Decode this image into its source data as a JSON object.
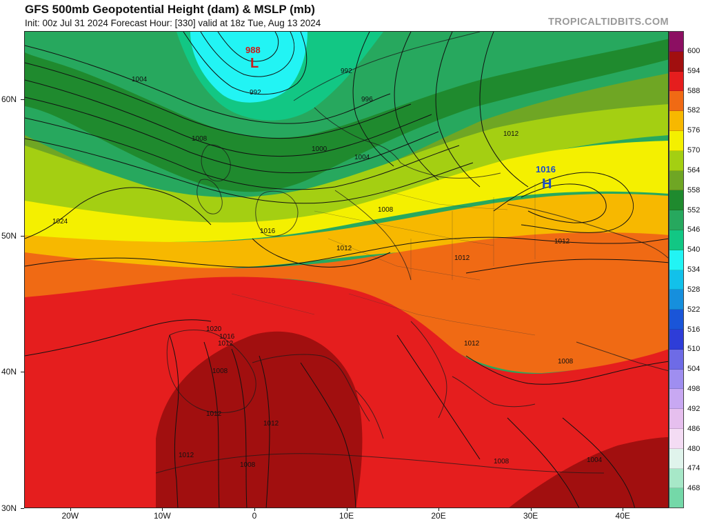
{
  "header": {
    "title": "GFS 500mb Geopotential Height (dam) & MSLP (mb)",
    "subtitle": "Init: 00z Jul 31 2024   Forecast Hour: [330]   valid at 18z Tue, Aug 13 2024",
    "brand": "TROPICALTIDBITS.COM"
  },
  "map": {
    "projection": "equirectangular",
    "lon_range": [
      -25,
      45
    ],
    "lat_range": [
      30,
      65
    ],
    "x_tick_labels": [
      "20W",
      "10W",
      "0",
      "10E",
      "20E",
      "30E",
      "40E"
    ],
    "y_tick_labels": [
      "60N",
      "50N",
      "40N",
      "30N"
    ],
    "pressure_centers": [
      {
        "type": "L",
        "value": "988"
      },
      {
        "type": "H",
        "value": "1016"
      }
    ],
    "isobar_labels": [
      "1004",
      "992",
      "996",
      "992",
      "1008",
      "1000",
      "1004",
      "1012",
      "1024",
      "1016",
      "1008",
      "1012",
      "1012",
      "1012",
      "1020",
      "1016",
      "1012",
      "1008",
      "1012",
      "1012",
      "1012",
      "1008",
      "1008",
      "1008",
      "1004",
      "1012"
    ]
  },
  "legend": {
    "values": [
      "600",
      "594",
      "588",
      "582",
      "576",
      "570",
      "564",
      "558",
      "552",
      "546",
      "540",
      "534",
      "528",
      "522",
      "516",
      "510",
      "504",
      "498",
      "492",
      "486",
      "480",
      "474",
      "468"
    ],
    "colors": [
      "#8c0f62",
      "#a10f0f",
      "#e51e1e",
      "#f06a14",
      "#f7b800",
      "#f4f000",
      "#a4cf12",
      "#6fa624",
      "#1f8a2e",
      "#27a85e",
      "#12c784",
      "#22f4f4",
      "#12c1ea",
      "#168fdd",
      "#1a55d8",
      "#2e3dd8",
      "#6e6be6",
      "#9f8ef0",
      "#c8a8f2",
      "#e6bfee",
      "#f4dcf4",
      "#e0f4ec",
      "#a7e8c8",
      "#74d8a8"
    ]
  }
}
